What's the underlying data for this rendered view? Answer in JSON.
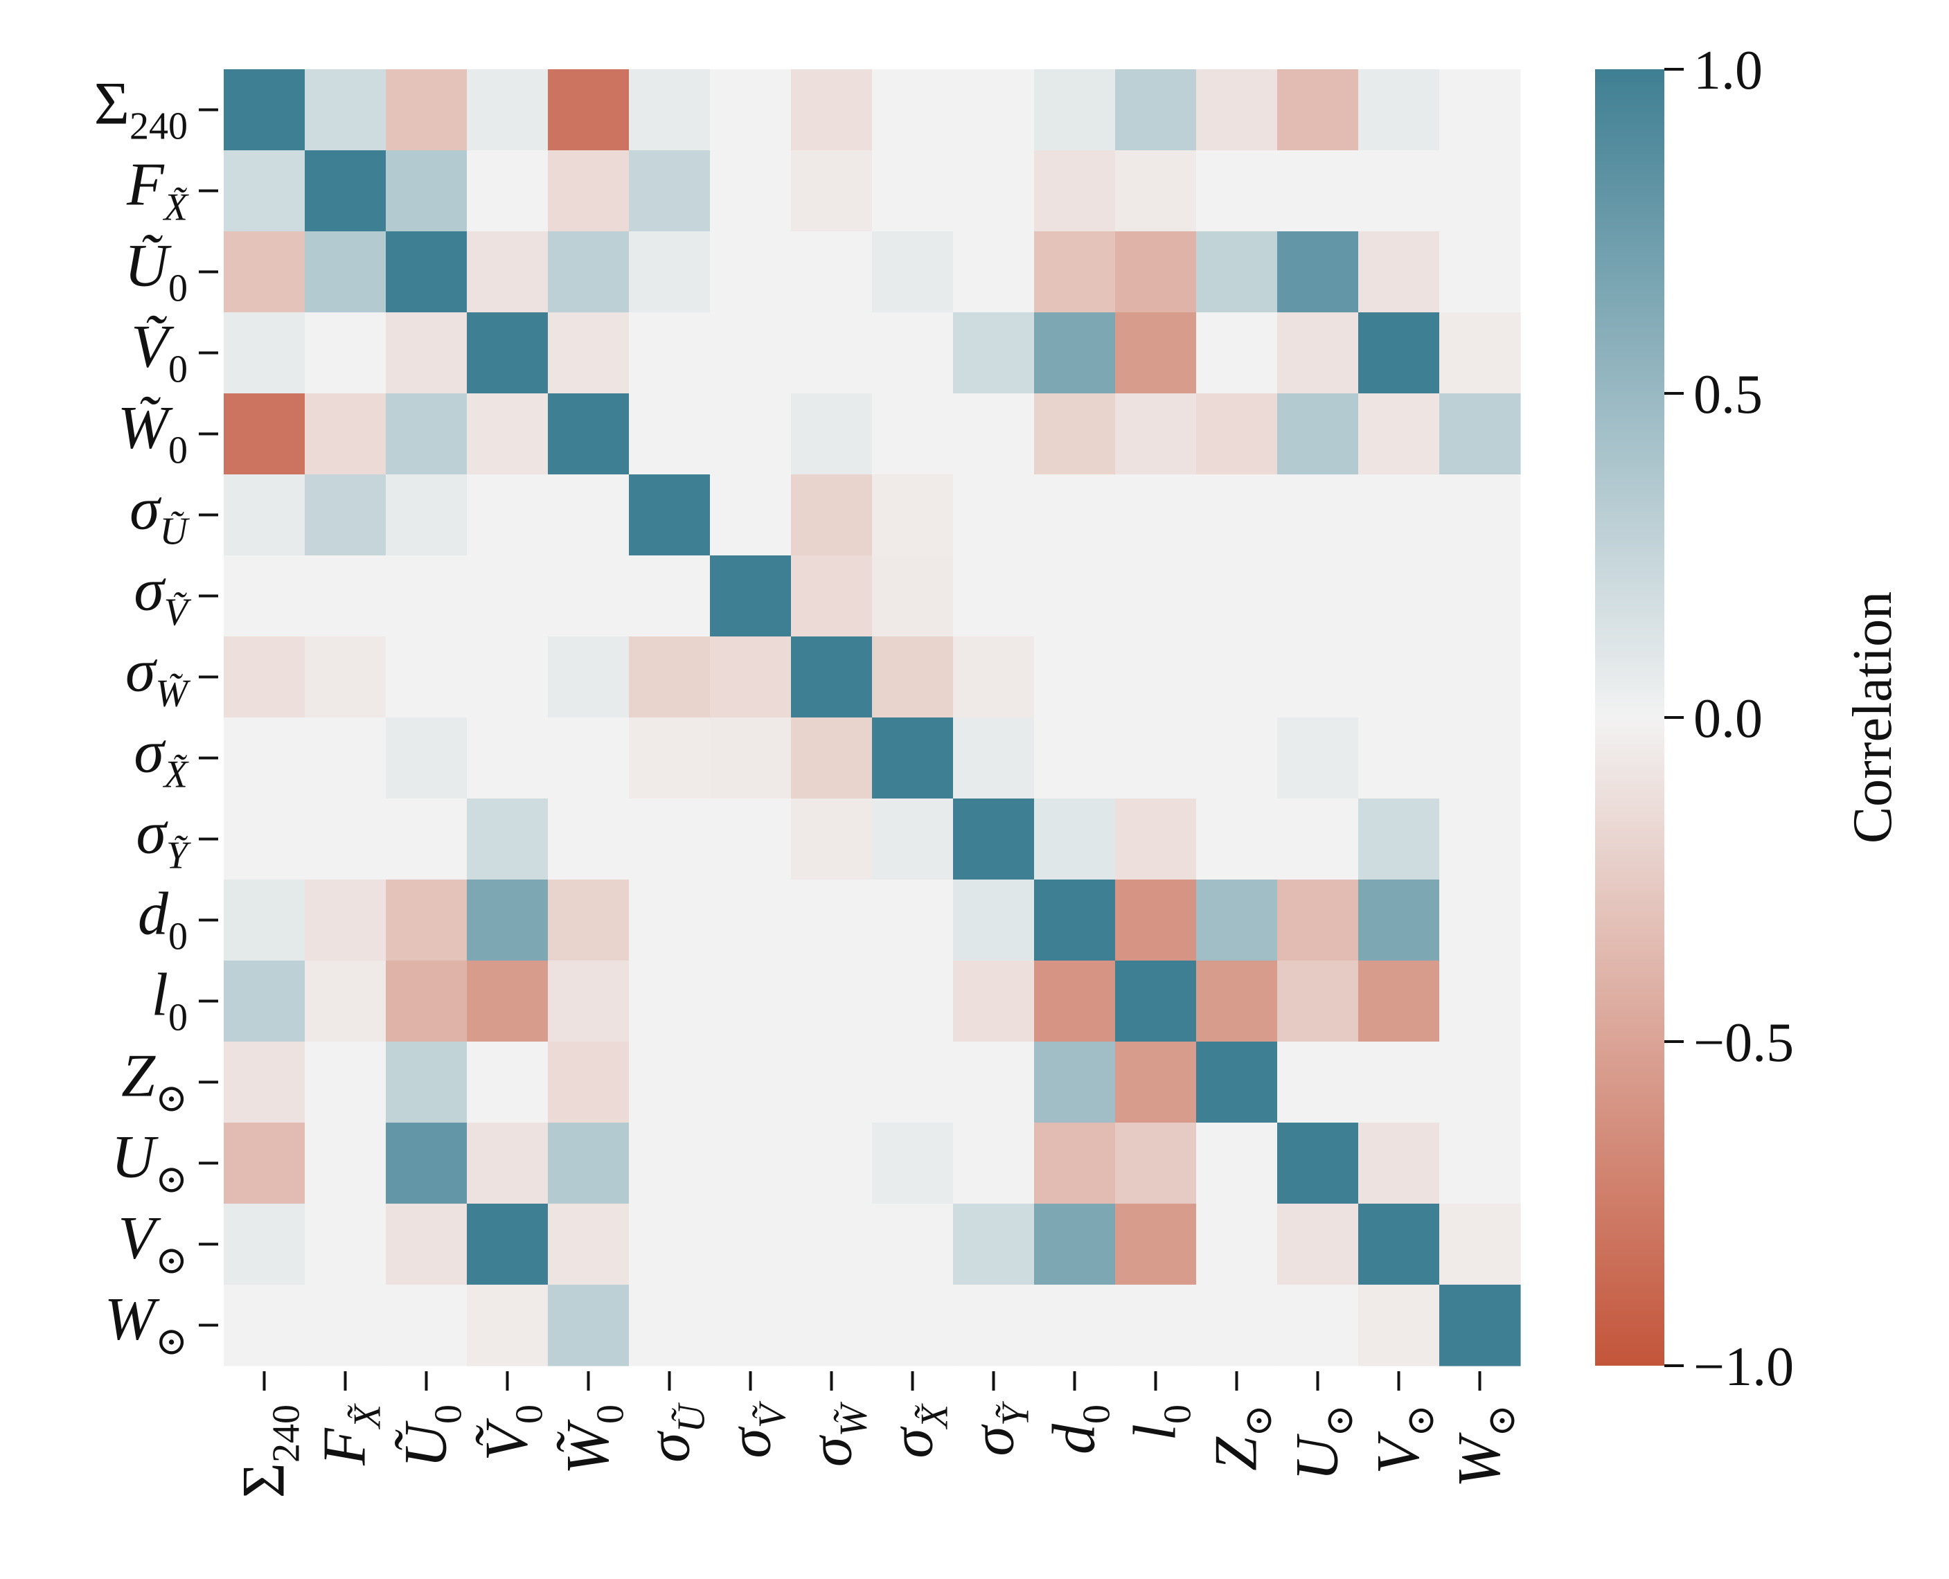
{
  "chart_data": {
    "type": "heatmap",
    "labels": [
      {
        "main": "Σ",
        "sub": "240",
        "italic": false,
        "tilde": false
      },
      {
        "main": "F",
        "sub": "X̃",
        "italic": true,
        "tilde": false
      },
      {
        "main": "U",
        "sub": "0",
        "italic": true,
        "tilde": true
      },
      {
        "main": "V",
        "sub": "0",
        "italic": true,
        "tilde": true
      },
      {
        "main": "W",
        "sub": "0",
        "italic": true,
        "tilde": true
      },
      {
        "main": "σ",
        "sub": "Ũ",
        "italic": true,
        "tilde": false
      },
      {
        "main": "σ",
        "sub": "Ṽ",
        "italic": true,
        "tilde": false
      },
      {
        "main": "σ",
        "sub": "W̃",
        "italic": true,
        "tilde": false
      },
      {
        "main": "σ",
        "sub": "X̃",
        "italic": true,
        "tilde": false
      },
      {
        "main": "σ",
        "sub": "Ỹ",
        "italic": true,
        "tilde": false
      },
      {
        "main": "d",
        "sub": "0",
        "italic": true,
        "tilde": false
      },
      {
        "main": "l",
        "sub": "0",
        "italic": true,
        "tilde": false
      },
      {
        "main": "Z",
        "sub": "⊙",
        "italic": true,
        "tilde": false
      },
      {
        "main": "U",
        "sub": "⊙",
        "italic": true,
        "tilde": false
      },
      {
        "main": "V",
        "sub": "⊙",
        "italic": true,
        "tilde": false
      },
      {
        "main": "W",
        "sub": "⊙",
        "italic": true,
        "tilde": false
      }
    ],
    "values": [
      [
        1.0,
        0.2,
        -0.3,
        0.06,
        -0.8,
        0.06,
        0.0,
        -0.12,
        0.0,
        0.0,
        0.08,
        0.3,
        -0.1,
        -0.35,
        0.06,
        0.0
      ],
      [
        0.2,
        1.0,
        0.35,
        0.0,
        -0.15,
        0.25,
        0.0,
        -0.06,
        0.0,
        0.0,
        -0.1,
        -0.06,
        0.0,
        0.0,
        0.0,
        0.0
      ],
      [
        -0.3,
        0.35,
        1.0,
        -0.1,
        0.3,
        0.06,
        0.0,
        0.0,
        0.06,
        0.0,
        -0.3,
        -0.4,
        0.27,
        0.8,
        -0.1,
        0.0
      ],
      [
        0.06,
        0.0,
        -0.1,
        1.0,
        -0.08,
        0.0,
        0.0,
        0.0,
        0.0,
        0.2,
        0.65,
        -0.55,
        0.0,
        -0.1,
        1.0,
        -0.05
      ],
      [
        -0.8,
        -0.15,
        0.3,
        -0.08,
        1.0,
        0.0,
        0.0,
        0.06,
        0.0,
        0.0,
        -0.2,
        -0.1,
        -0.15,
        0.35,
        -0.08,
        0.3
      ],
      [
        0.06,
        0.25,
        0.06,
        0.0,
        0.0,
        1.0,
        0.0,
        -0.2,
        -0.05,
        0.0,
        0.0,
        0.0,
        0.0,
        0.0,
        0.0,
        0.0
      ],
      [
        0.0,
        0.0,
        0.0,
        0.0,
        0.0,
        0.0,
        1.0,
        -0.15,
        -0.06,
        0.0,
        0.0,
        0.0,
        0.0,
        0.0,
        0.0,
        0.0
      ],
      [
        -0.12,
        -0.06,
        0.0,
        0.0,
        0.06,
        -0.2,
        -0.15,
        1.0,
        -0.2,
        -0.06,
        0.0,
        0.0,
        0.0,
        0.0,
        0.0,
        0.0
      ],
      [
        0.0,
        0.0,
        0.06,
        0.0,
        0.0,
        -0.05,
        -0.06,
        -0.2,
        1.0,
        0.06,
        0.0,
        0.0,
        0.0,
        0.05,
        0.0,
        0.0
      ],
      [
        0.0,
        0.0,
        0.0,
        0.2,
        0.0,
        0.0,
        0.0,
        -0.06,
        0.06,
        1.0,
        0.1,
        -0.12,
        0.0,
        0.0,
        0.2,
        0.0
      ],
      [
        0.08,
        -0.1,
        -0.3,
        0.65,
        -0.2,
        0.0,
        0.0,
        0.0,
        0.0,
        0.1,
        1.0,
        -0.6,
        0.45,
        -0.35,
        0.65,
        0.0
      ],
      [
        0.3,
        -0.06,
        -0.4,
        -0.55,
        -0.1,
        0.0,
        0.0,
        0.0,
        0.0,
        -0.12,
        -0.6,
        1.0,
        -0.55,
        -0.25,
        -0.55,
        0.0
      ],
      [
        -0.1,
        0.0,
        0.27,
        0.0,
        -0.15,
        0.0,
        0.0,
        0.0,
        0.0,
        0.0,
        0.45,
        -0.55,
        1.0,
        0.0,
        0.0,
        0.0
      ],
      [
        -0.35,
        0.0,
        0.8,
        -0.1,
        0.35,
        0.0,
        0.0,
        0.0,
        0.05,
        0.0,
        -0.35,
        -0.25,
        0.0,
        1.0,
        -0.1,
        0.0
      ],
      [
        0.06,
        0.0,
        -0.1,
        1.0,
        -0.08,
        0.0,
        0.0,
        0.0,
        0.0,
        0.2,
        0.65,
        -0.55,
        0.0,
        -0.1,
        1.0,
        -0.05
      ],
      [
        0.0,
        0.0,
        0.0,
        -0.05,
        0.3,
        0.0,
        0.0,
        0.0,
        0.0,
        0.0,
        0.0,
        0.0,
        0.0,
        0.0,
        -0.05,
        1.0
      ]
    ],
    "colorbar": {
      "label": "Correlation",
      "range": [
        -1.0,
        1.0
      ],
      "ticks": [
        1.0,
        0.5,
        0.0,
        -0.5,
        -1.0
      ],
      "tick_labels": [
        "1.0",
        "0.5",
        "0.0",
        "−0.5",
        "−1.0"
      ]
    },
    "colors": {
      "negative": "#c3553a",
      "neutral": "#f2f2f2",
      "positive": "#3f7f93"
    }
  }
}
